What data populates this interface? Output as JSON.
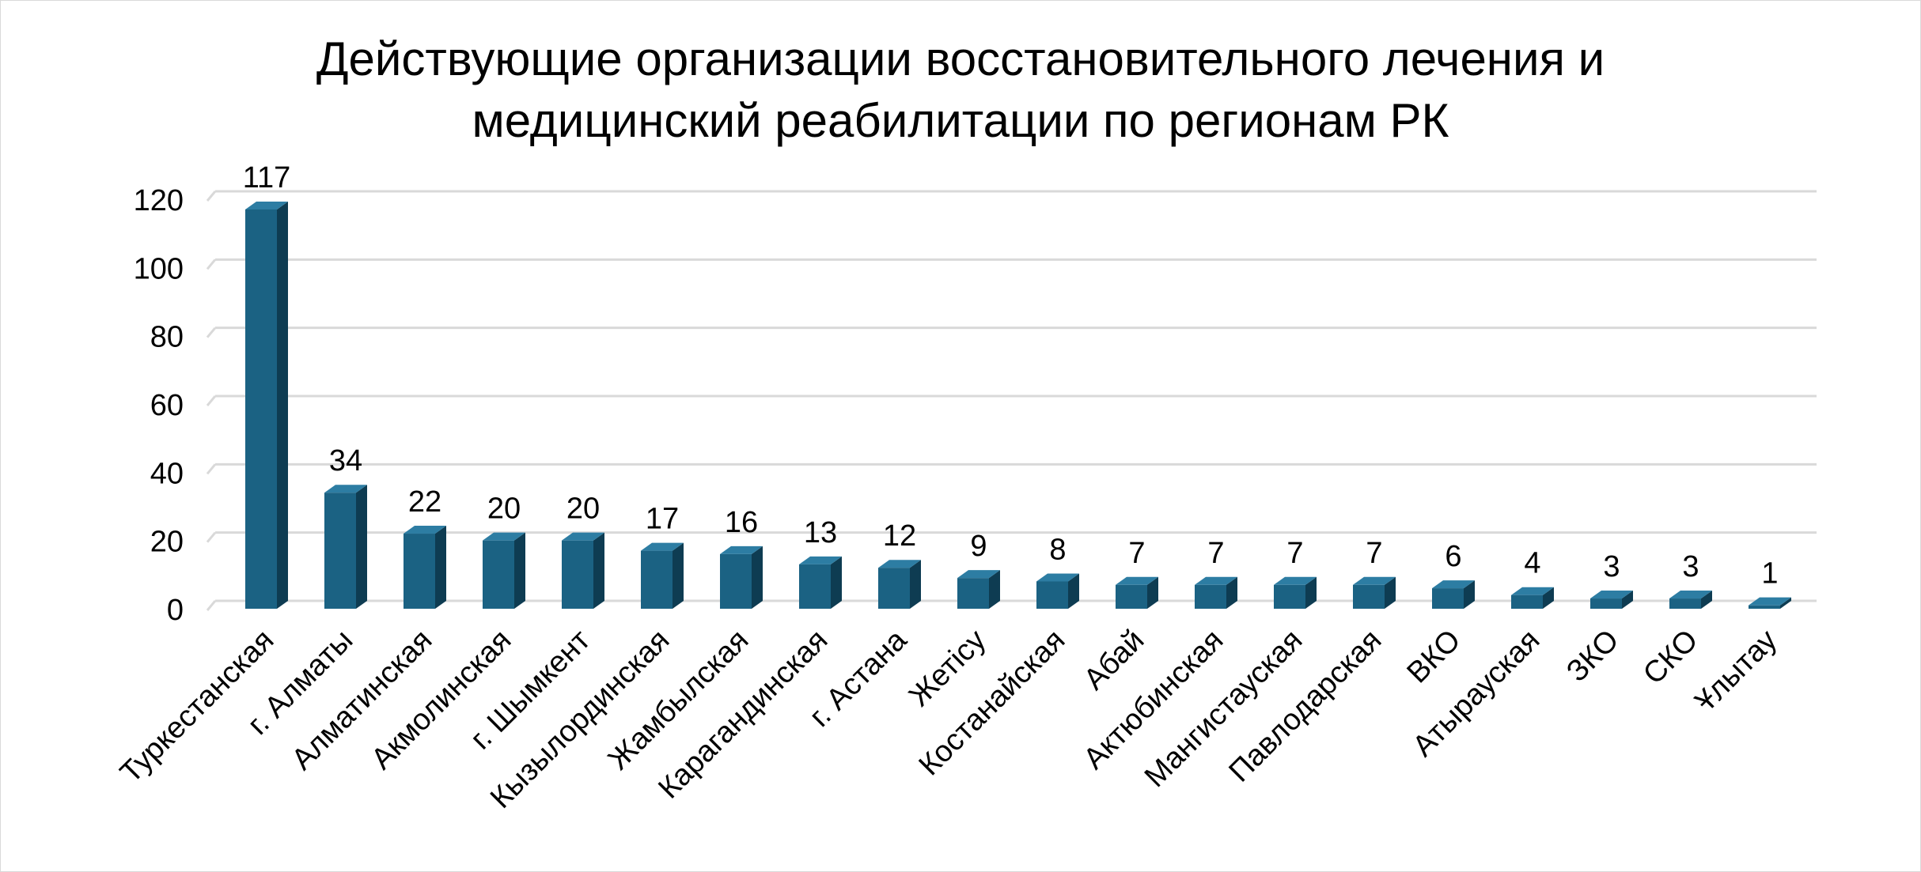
{
  "chart_data": {
    "type": "bar",
    "title_lines": [
      "Действующие организации восстановительного лечения и",
      "медицинский реабилитации по регионам РК"
    ],
    "categories": [
      "Туркестанская",
      "г. Алматы",
      "Алматинская",
      "Акмолинская",
      "г. Шымкент",
      "Кызылординская",
      "Жамбылская",
      "Карагандинская",
      "г. Астана",
      "Жетісу",
      "Костанайская",
      "Абай",
      "Актюбинская",
      "Мангистауская",
      "Павлодарская",
      "ВКО",
      "Атырауская",
      "ЗКО",
      "СКО",
      "Ұлытау"
    ],
    "values": [
      117,
      34,
      22,
      20,
      20,
      17,
      16,
      13,
      12,
      9,
      8,
      7,
      7,
      7,
      7,
      6,
      4,
      3,
      3,
      1
    ],
    "data_labels": [
      "117",
      "34",
      "22",
      "20",
      "20",
      "17",
      "16",
      "13",
      "12",
      "9",
      "8",
      "7",
      "7",
      "7",
      "7",
      "6",
      "4",
      "3",
      "3",
      "1"
    ],
    "y_ticks": [
      "0",
      "20",
      "40",
      "60",
      "80",
      "100",
      "120"
    ],
    "ylim": [
      0,
      120
    ],
    "grid": true,
    "style": "3d-column",
    "colors": {
      "front": "#1b6283",
      "side": "#0e3c52",
      "top": "#2d7da3",
      "grid": "#d9d9d9",
      "text": "#000000"
    }
  }
}
